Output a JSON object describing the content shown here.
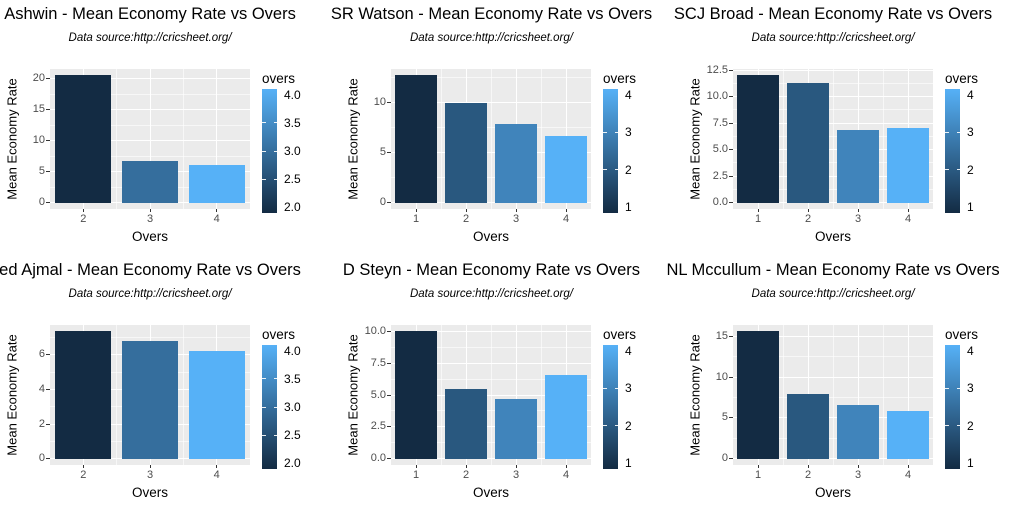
{
  "style": {
    "panel_bg": "#EBEBEB",
    "grid_major": "#FFFFFF",
    "grid_minor": "rgba(255,255,255,0.6)",
    "bar_low": "#132B43",
    "bar_high": "#56B1F7",
    "axis_tick_color": "#333333",
    "tick_label_color": "#4D4D4D",
    "title_color": "#000000",
    "legend_tick_color": "rgba(255,255,255,0.9)"
  },
  "chart_data": [
    {
      "type": "bar",
      "title": "Ashwin - Mean Economy Rate vs Overs",
      "subtitle": "Data source:http://cricsheet.org/",
      "xlabel": "Overs",
      "ylabel": "Mean Economy Rate",
      "categories": [
        2,
        3,
        4
      ],
      "values": [
        20.5,
        6.7,
        6.1
      ],
      "yticks": [
        0,
        5,
        10,
        15,
        20
      ],
      "ytick_labels": [
        "0",
        "5",
        "10",
        "15",
        "20"
      ],
      "ylim": [
        0,
        21.5
      ],
      "grid": true,
      "legend": {
        "title": "overs",
        "position": "right",
        "labels": [
          "4.0",
          "3.5",
          "3.0",
          "2.5",
          "2.0"
        ],
        "label_values": [
          4,
          3.5,
          3,
          2.5,
          2
        ],
        "domain": [
          2,
          4
        ]
      }
    },
    {
      "type": "bar",
      "title": "SR Watson - Mean Economy Rate vs Overs",
      "subtitle": "Data source:http://cricsheet.org/",
      "xlabel": "Overs",
      "ylabel": "Mean Economy Rate",
      "categories": [
        1,
        2,
        3,
        4
      ],
      "values": [
        12.7,
        9.9,
        7.8,
        6.7
      ],
      "yticks": [
        0,
        5,
        10
      ],
      "ytick_labels": [
        "0",
        "5",
        "10"
      ],
      "ylim": [
        0,
        13.3
      ],
      "grid": true,
      "legend": {
        "title": "overs",
        "position": "right",
        "labels": [
          "4",
          "3",
          "2",
          "1"
        ],
        "label_values": [
          4,
          3,
          2,
          1
        ],
        "domain": [
          1,
          4
        ]
      }
    },
    {
      "type": "bar",
      "title": "SCJ Broad - Mean Economy Rate vs Overs",
      "subtitle": "Data source:http://cricsheet.org/",
      "xlabel": "Overs",
      "ylabel": "Mean Economy Rate",
      "categories": [
        1,
        2,
        3,
        4
      ],
      "values": [
        12.0,
        11.3,
        6.85,
        7.0
      ],
      "yticks": [
        0,
        2.5,
        5,
        7.5,
        10,
        12.5
      ],
      "ytick_labels": [
        "0.0",
        "2.5",
        "5.0",
        "7.5",
        "10.0",
        "12.5"
      ],
      "ylim": [
        0,
        12.6
      ],
      "grid": true,
      "legend": {
        "title": "overs",
        "position": "right",
        "labels": [
          "4",
          "3",
          "2",
          "1"
        ],
        "label_values": [
          4,
          3,
          2,
          1
        ],
        "domain": [
          1,
          4
        ]
      }
    },
    {
      "type": "bar",
      "title": "ed Ajmal - Mean Economy Rate vs Overs",
      "subtitle": "Data source:http://cricsheet.org/",
      "xlabel": "Overs",
      "ylabel": "Mean Economy Rate",
      "categories": [
        2,
        3,
        4
      ],
      "values": [
        7.35,
        6.8,
        6.2
      ],
      "yticks": [
        0,
        2,
        4,
        6
      ],
      "ytick_labels": [
        "0",
        "2",
        "4",
        "6"
      ],
      "ylim": [
        0,
        7.7
      ],
      "grid": true,
      "legend": {
        "title": "overs",
        "position": "right",
        "labels": [
          "4.0",
          "3.5",
          "3.0",
          "2.5",
          "2.0"
        ],
        "label_values": [
          4,
          3.5,
          3,
          2.5,
          2
        ],
        "domain": [
          2,
          4
        ]
      }
    },
    {
      "type": "bar",
      "title": "D Steyn - Mean Economy Rate vs Overs",
      "subtitle": "Data source:http://cricsheet.org/",
      "xlabel": "Overs",
      "ylabel": "Mean Economy Rate",
      "categories": [
        1,
        2,
        3,
        4
      ],
      "values": [
        10.0,
        5.5,
        4.65,
        6.6
      ],
      "yticks": [
        0,
        2.5,
        5,
        7.5,
        10
      ],
      "ytick_labels": [
        "0.0",
        "2.5",
        "5.0",
        "7.5",
        "10.0"
      ],
      "ylim": [
        0,
        10.5
      ],
      "grid": true,
      "legend": {
        "title": "overs",
        "position": "right",
        "labels": [
          "4",
          "3",
          "2",
          "1"
        ],
        "label_values": [
          4,
          3,
          2,
          1
        ],
        "domain": [
          1,
          4
        ]
      }
    },
    {
      "type": "bar",
      "title": "NL Mccullum - Mean Economy Rate vs Overs",
      "subtitle": "Data source:http://cricsheet.org/",
      "xlabel": "Overs",
      "ylabel": "Mean Economy Rate",
      "categories": [
        1,
        2,
        3,
        4
      ],
      "values": [
        15.6,
        7.9,
        6.6,
        5.8
      ],
      "yticks": [
        0,
        5,
        10,
        15
      ],
      "ytick_labels": [
        "0",
        "5",
        "10",
        "15"
      ],
      "ylim": [
        0,
        16.4
      ],
      "grid": true,
      "legend": {
        "title": "overs",
        "position": "right",
        "labels": [
          "4",
          "3",
          "2",
          "1"
        ],
        "label_values": [
          4,
          3,
          2,
          1
        ],
        "domain": [
          1,
          4
        ]
      }
    }
  ]
}
